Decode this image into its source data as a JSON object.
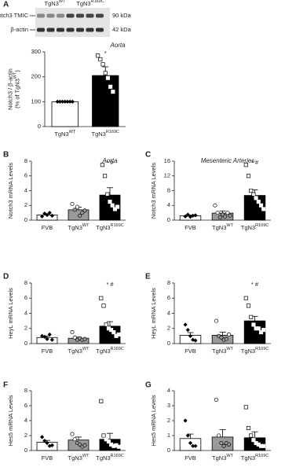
{
  "blot": {
    "lanes": [
      [
        "TgN3",
        {
          "sup": "WT"
        }
      ],
      [
        "TgN3",
        {
          "sup": "R169C"
        }
      ]
    ],
    "rows": [
      "Notch3 TMIC",
      "β-actin"
    ],
    "sizes": [
      "90 kDa",
      "42 kDa"
    ]
  },
  "chart_data": [
    {
      "type": "bar",
      "panel": "A",
      "title": "Aorta",
      "y_label": [
        "Notch3 / β-actin",
        [
          "(% of TgN3",
          {
            "sup": "WT"
          },
          ")"
        ]
      ],
      "categories": [
        [
          "TgN3",
          {
            "sup": "WT"
          }
        ],
        [
          "TgN3",
          {
            "sup": "R169C"
          }
        ]
      ],
      "values": [
        100,
        205
      ],
      "errors": [
        2,
        35
      ],
      "colors": [
        "#ffffff",
        "#000000"
      ],
      "markers": [
        "diamond",
        "square"
      ],
      "points": [
        [
          100,
          100,
          100,
          100,
          100,
          100,
          100
        ],
        [
          285,
          270,
          250,
          215,
          195,
          160,
          140
        ]
      ],
      "annotation": "*",
      "ylim": [
        0,
        300
      ],
      "yticks": [
        0,
        100,
        200,
        300
      ]
    },
    {
      "type": "bar",
      "panel": "B",
      "title": "Aorta",
      "y_label": [
        "Notch3 mRNA Levels"
      ],
      "categories": [
        "FVB",
        [
          "TgN3",
          {
            "sup": "WT"
          }
        ],
        [
          "TgN3",
          {
            "sup": "R169C"
          }
        ]
      ],
      "values": [
        0.7,
        1.4,
        3.4
      ],
      "errors": [
        0.15,
        0.35,
        1.0
      ],
      "colors": [
        "#ffffff",
        "#9a9a9a",
        "#000000"
      ],
      "markers": [
        "diamond",
        "circle",
        "square"
      ],
      "points": [
        [
          0.5,
          0.9,
          0.7,
          1.0,
          0.6
        ],
        [
          2.2,
          1.4,
          1.8,
          0.6,
          1.0,
          1.3
        ],
        [
          7.5,
          6.0,
          3.5,
          2.5,
          2.0,
          1.5,
          1.8
        ]
      ],
      "annotation": "* #",
      "ylim": [
        0,
        8
      ],
      "yticks": [
        0,
        2,
        4,
        6,
        8
      ]
    },
    {
      "type": "bar",
      "panel": "C",
      "title": "Mesenteric Arteries",
      "y_label": [
        "Notch3 mRNA Levels"
      ],
      "categories": [
        "FVB",
        [
          "TgN3",
          {
            "sup": "WT"
          }
        ],
        [
          "TgN3",
          {
            "sup": "R169C"
          }
        ]
      ],
      "values": [
        1.2,
        1.9,
        6.7
      ],
      "errors": [
        0.2,
        0.6,
        1.5
      ],
      "colors": [
        "#ffffff",
        "#9a9a9a",
        "#000000"
      ],
      "markers": [
        "diamond",
        "circle",
        "square"
      ],
      "points": [
        [
          1.0,
          1.5,
          0.9,
          1.2,
          1.3
        ],
        [
          4.0,
          2.0,
          0.8,
          1.5,
          1.0,
          2.0,
          1.2
        ],
        [
          15,
          12,
          8,
          7,
          6,
          5,
          4,
          3
        ]
      ],
      "annotation": "* #",
      "ylim": [
        0,
        16
      ],
      "yticks": [
        0,
        4,
        8,
        12,
        16
      ]
    },
    {
      "type": "bar",
      "panel": "D",
      "y_label": [
        "HeyL mRNA Levels"
      ],
      "categories": [
        "FVB",
        [
          "TgN3",
          {
            "sup": "WT"
          }
        ],
        [
          "TgN3",
          {
            "sup": "R169C"
          }
        ]
      ],
      "values": [
        0.8,
        0.7,
        2.3
      ],
      "errors": [
        0.2,
        0.15,
        0.6
      ],
      "colors": [
        "#ffffff",
        "#9a9a9a",
        "#000000"
      ],
      "markers": [
        "diamond",
        "circle",
        "square"
      ],
      "points": [
        [
          1.0,
          0.9,
          0.6,
          1.2,
          0.5
        ],
        [
          1.5,
          0.8,
          0.5,
          0.7,
          0.5,
          0.6
        ],
        [
          6,
          5,
          2.5,
          2,
          1.8,
          1.5,
          1.0,
          1.2
        ]
      ],
      "annotation": "* #",
      "ylim": [
        0,
        8
      ],
      "yticks": [
        0,
        2,
        4,
        6,
        8
      ]
    },
    {
      "type": "bar",
      "panel": "E",
      "y_label": [
        "HeyL mRNA Levels"
      ],
      "categories": [
        "FVB",
        [
          "TgN3",
          {
            "sup": "WT"
          }
        ],
        [
          "TgN3",
          {
            "sup": "R169C"
          }
        ]
      ],
      "values": [
        1.1,
        1.1,
        3.0
      ],
      "errors": [
        0.35,
        0.4,
        0.6
      ],
      "colors": [
        "#ffffff",
        "#9a9a9a",
        "#000000"
      ],
      "markers": [
        "diamond",
        "circle",
        "square"
      ],
      "points": [
        [
          2.5,
          1.8,
          1.0,
          0.5,
          0.4
        ],
        [
          3.0,
          1.0,
          0.8,
          0.5,
          0.6,
          1.2
        ],
        [
          6,
          5,
          3.5,
          2.5,
          2,
          2,
          1.5,
          1.8
        ]
      ],
      "annotation": "* #",
      "ylim": [
        0,
        8
      ],
      "yticks": [
        0,
        2,
        4,
        6,
        8
      ]
    },
    {
      "type": "bar",
      "panel": "F",
      "y_label": [
        "Hes5 mRNA Levels"
      ],
      "categories": [
        "FVB",
        [
          "TgN3",
          {
            "sup": "WT"
          }
        ],
        [
          "TgN3",
          {
            "sup": "R169C"
          }
        ]
      ],
      "values": [
        1.1,
        1.4,
        1.5
      ],
      "errors": [
        0.25,
        0.4,
        0.8
      ],
      "colors": [
        "#ffffff",
        "#9a9a9a",
        "#000000"
      ],
      "markers": [
        "diamond",
        "circle",
        "square"
      ],
      "points": [
        [
          1.8,
          1.3,
          1.0,
          0.6,
          0.7
        ],
        [
          2.2,
          1.5,
          1.0,
          0.8,
          0.5,
          0.7
        ],
        [
          6.6,
          2,
          1.5,
          1.2,
          0.8,
          0.6,
          0.7,
          0.5
        ]
      ],
      "ylim": [
        0,
        8
      ],
      "yticks": [
        0,
        2,
        4,
        6,
        8
      ]
    },
    {
      "type": "bar",
      "panel": "G",
      "y_label": [
        "Hes5 mRNA Levels"
      ],
      "categories": [
        "FVB",
        [
          "TgN3",
          {
            "sup": "WT"
          }
        ],
        [
          "TgN3",
          {
            "sup": "R169C"
          }
        ]
      ],
      "values": [
        0.8,
        0.9,
        0.85
      ],
      "errors": [
        0.3,
        0.5,
        0.4
      ],
      "colors": [
        "#ffffff",
        "#9a9a9a",
        "#000000"
      ],
      "markers": [
        "diamond",
        "circle",
        "square"
      ],
      "points": [
        [
          2.0,
          1.0,
          0.5,
          0.3,
          0.3
        ],
        [
          3.4,
          1.0,
          0.5,
          0.3,
          0.5,
          0.4
        ],
        [
          2.9,
          1.5,
          1.0,
          0.7,
          0.5,
          0.4,
          0.3,
          0.3
        ]
      ],
      "ylim": [
        0,
        4
      ],
      "yticks": [
        0,
        1,
        2,
        3,
        4
      ]
    }
  ]
}
